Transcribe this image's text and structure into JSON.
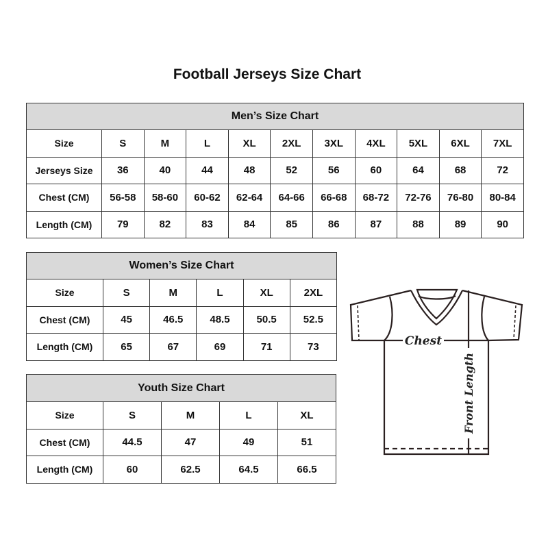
{
  "title": "Football Jerseys Size Chart",
  "mens": {
    "heading": "Men’s Size Chart",
    "rows": [
      {
        "label": "Size",
        "cells": [
          "S",
          "M",
          "L",
          "XL",
          "2XL",
          "3XL",
          "4XL",
          "5XL",
          "6XL",
          "7XL"
        ]
      },
      {
        "label": "Jerseys Size",
        "cells": [
          "36",
          "40",
          "44",
          "48",
          "52",
          "56",
          "60",
          "64",
          "68",
          "72"
        ]
      },
      {
        "label": "Chest (CM)",
        "cells": [
          "56-58",
          "58-60",
          "60-62",
          "62-64",
          "64-66",
          "66-68",
          "68-72",
          "72-76",
          "76-80",
          "80-84"
        ]
      },
      {
        "label": "Length (CM)",
        "cells": [
          "79",
          "82",
          "83",
          "84",
          "85",
          "86",
          "87",
          "88",
          "89",
          "90"
        ]
      }
    ]
  },
  "womens": {
    "heading": "Women’s Size Chart",
    "rows": [
      {
        "label": "Size",
        "cells": [
          "S",
          "M",
          "L",
          "XL",
          "2XL"
        ]
      },
      {
        "label": "Chest (CM)",
        "cells": [
          "45",
          "46.5",
          "48.5",
          "50.5",
          "52.5"
        ]
      },
      {
        "label": "Length (CM)",
        "cells": [
          "65",
          "67",
          "69",
          "71",
          "73"
        ]
      }
    ]
  },
  "youth": {
    "heading": "Youth Size Chart",
    "rows": [
      {
        "label": "Size",
        "cells": [
          "S",
          "M",
          "L",
          "XL"
        ]
      },
      {
        "label": "Chest (CM)",
        "cells": [
          "44.5",
          "47",
          "49",
          "51"
        ]
      },
      {
        "label": "Length (CM)",
        "cells": [
          "60",
          "62.5",
          "64.5",
          "66.5"
        ]
      }
    ]
  },
  "diagram": {
    "chest_label": "Chest",
    "length_label": "Front Length"
  }
}
